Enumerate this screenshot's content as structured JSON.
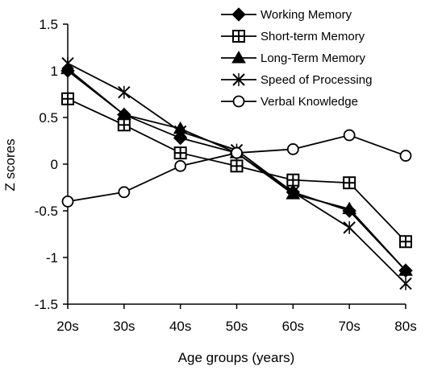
{
  "chart_data": {
    "type": "line",
    "categories": [
      "20s",
      "30s",
      "40s",
      "50s",
      "60s",
      "70s",
      "80s"
    ],
    "xlabel": "Age groups (years)",
    "ylabel": "Z scores",
    "ylim": [
      -1.5,
      1.5
    ],
    "yticks": [
      "1.5",
      "1",
      "0.5",
      "0",
      "-0.5",
      "-1",
      "-1.5"
    ],
    "grid": false,
    "legend_position": "top-right",
    "series": [
      {
        "name": "Working Memory",
        "marker": "diamond-filled",
        "values": [
          1.0,
          0.53,
          0.28,
          0.12,
          -0.3,
          -0.5,
          -1.14
        ]
      },
      {
        "name": "Short-term Memory",
        "marker": "square-cross",
        "values": [
          0.7,
          0.42,
          0.12,
          -0.02,
          -0.17,
          -0.2,
          -0.83
        ]
      },
      {
        "name": "Long-Term Memory",
        "marker": "triangle-filled",
        "values": [
          1.02,
          0.53,
          0.38,
          0.12,
          -0.32,
          -0.48,
          -1.14
        ]
      },
      {
        "name": "Speed of Processing",
        "marker": "star-x",
        "values": [
          1.08,
          0.77,
          0.35,
          0.15,
          -0.3,
          -0.68,
          -1.28
        ]
      },
      {
        "name": "Verbal Knowledge",
        "marker": "circle-open",
        "values": [
          -0.4,
          -0.3,
          -0.02,
          0.12,
          0.16,
          0.31,
          0.09
        ]
      }
    ]
  }
}
